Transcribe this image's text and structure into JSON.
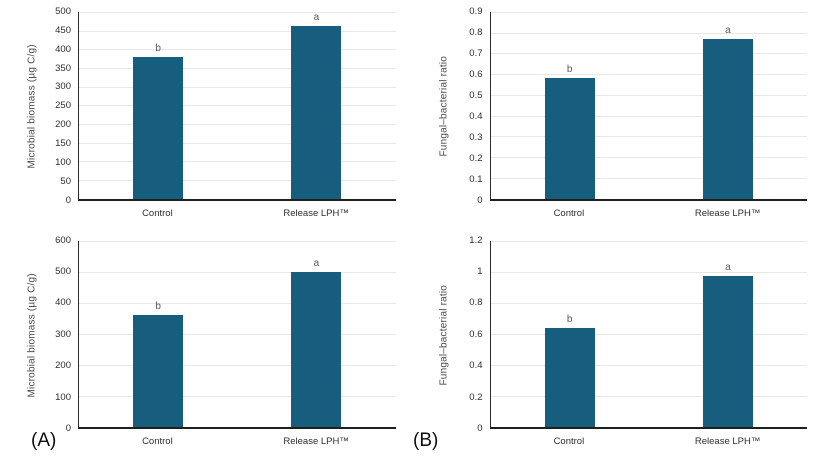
{
  "figure": {
    "panel_labels": {
      "a": "(A)",
      "b": "(B)"
    }
  },
  "colors": {
    "bar": "#175e7e",
    "gridline": "#e7e7e7",
    "axis": "#1f1f1f",
    "text": "#2e2e2e",
    "sig_letter": "#595959"
  },
  "chart_data": [
    {
      "position": "top-left",
      "type": "bar",
      "title": "",
      "xlabel": "",
      "ylabel": "Microbial biomass (µg C/g)",
      "categories": [
        "Control",
        "Release LPH™"
      ],
      "values": [
        380,
        475
      ],
      "sig_letters": [
        "b",
        "a"
      ],
      "ylim": [
        0,
        500
      ],
      "ytick_values": [
        0,
        50,
        100,
        150,
        200,
        250,
        300,
        350,
        400,
        450,
        500
      ],
      "ytick_labels": [
        "0",
        "50",
        "100",
        "150",
        "200",
        "250",
        "300",
        "350",
        "400",
        "450",
        "500"
      ],
      "grid": true,
      "legend": "none"
    },
    {
      "position": "top-right",
      "type": "bar",
      "title": "",
      "xlabel": "",
      "ylabel": "Fungal–bacterial ratio",
      "categories": [
        "Control",
        "Release LPH™"
      ],
      "values": [
        0.58,
        0.77
      ],
      "sig_letters": [
        "b",
        "a"
      ],
      "ylim": [
        0,
        0.9
      ],
      "ytick_values": [
        0,
        0.1,
        0.2,
        0.3,
        0.4,
        0.5,
        0.6,
        0.7,
        0.8,
        0.9
      ],
      "ytick_labels": [
        "0",
        "0.1",
        "0.2",
        "0.3",
        "0.4",
        "0.5",
        "0.6",
        "0.7",
        "0.8",
        "0.9"
      ],
      "grid": true,
      "legend": "none"
    },
    {
      "position": "bottom-left",
      "type": "bar",
      "title": "",
      "xlabel": "",
      "ylabel": "Microbial biomass (µg C/g)",
      "categories": [
        "Control",
        "Release LPH™"
      ],
      "values": [
        360,
        500
      ],
      "sig_letters": [
        "b",
        "a"
      ],
      "ylim": [
        0,
        600
      ],
      "ytick_values": [
        0,
        100,
        200,
        300,
        400,
        500,
        600
      ],
      "ytick_labels": [
        "0",
        "100",
        "200",
        "300",
        "400",
        "500",
        "600"
      ],
      "grid": true,
      "legend": "none"
    },
    {
      "position": "bottom-right",
      "type": "bar",
      "title": "",
      "xlabel": "",
      "ylabel": "Fungal–bacterial ratio",
      "categories": [
        "Control",
        "Release LPH™"
      ],
      "values": [
        0.64,
        0.97
      ],
      "sig_letters": [
        "b",
        "a"
      ],
      "ylim": [
        0,
        1.2
      ],
      "ytick_values": [
        0,
        0.2,
        0.4,
        0.6,
        0.8,
        1,
        1.2
      ],
      "ytick_labels": [
        "0",
        "0.2",
        "0.4",
        "0.6",
        "0.8",
        "1",
        "1.2"
      ],
      "grid": true,
      "legend": "none"
    }
  ]
}
